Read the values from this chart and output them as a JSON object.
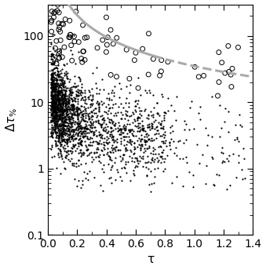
{
  "title": "",
  "xlabel": "τ",
  "ylabel": "Δτ_%",
  "xlim": [
    0,
    1.4
  ],
  "ylim": [
    0.1,
    300
  ],
  "background_color": "#ffffff",
  "curve_color": "#aaaaaa",
  "filled_marker_color": "#000000",
  "open_marker_color": "#000000",
  "seed": 42,
  "n_filled": 2500,
  "n_open": 100,
  "curve_A": 3.5,
  "curve_B": 1.1,
  "curve_solid_end": 0.72,
  "curve_dashed_start": 0.72,
  "curve_dashed_end": 1.4
}
